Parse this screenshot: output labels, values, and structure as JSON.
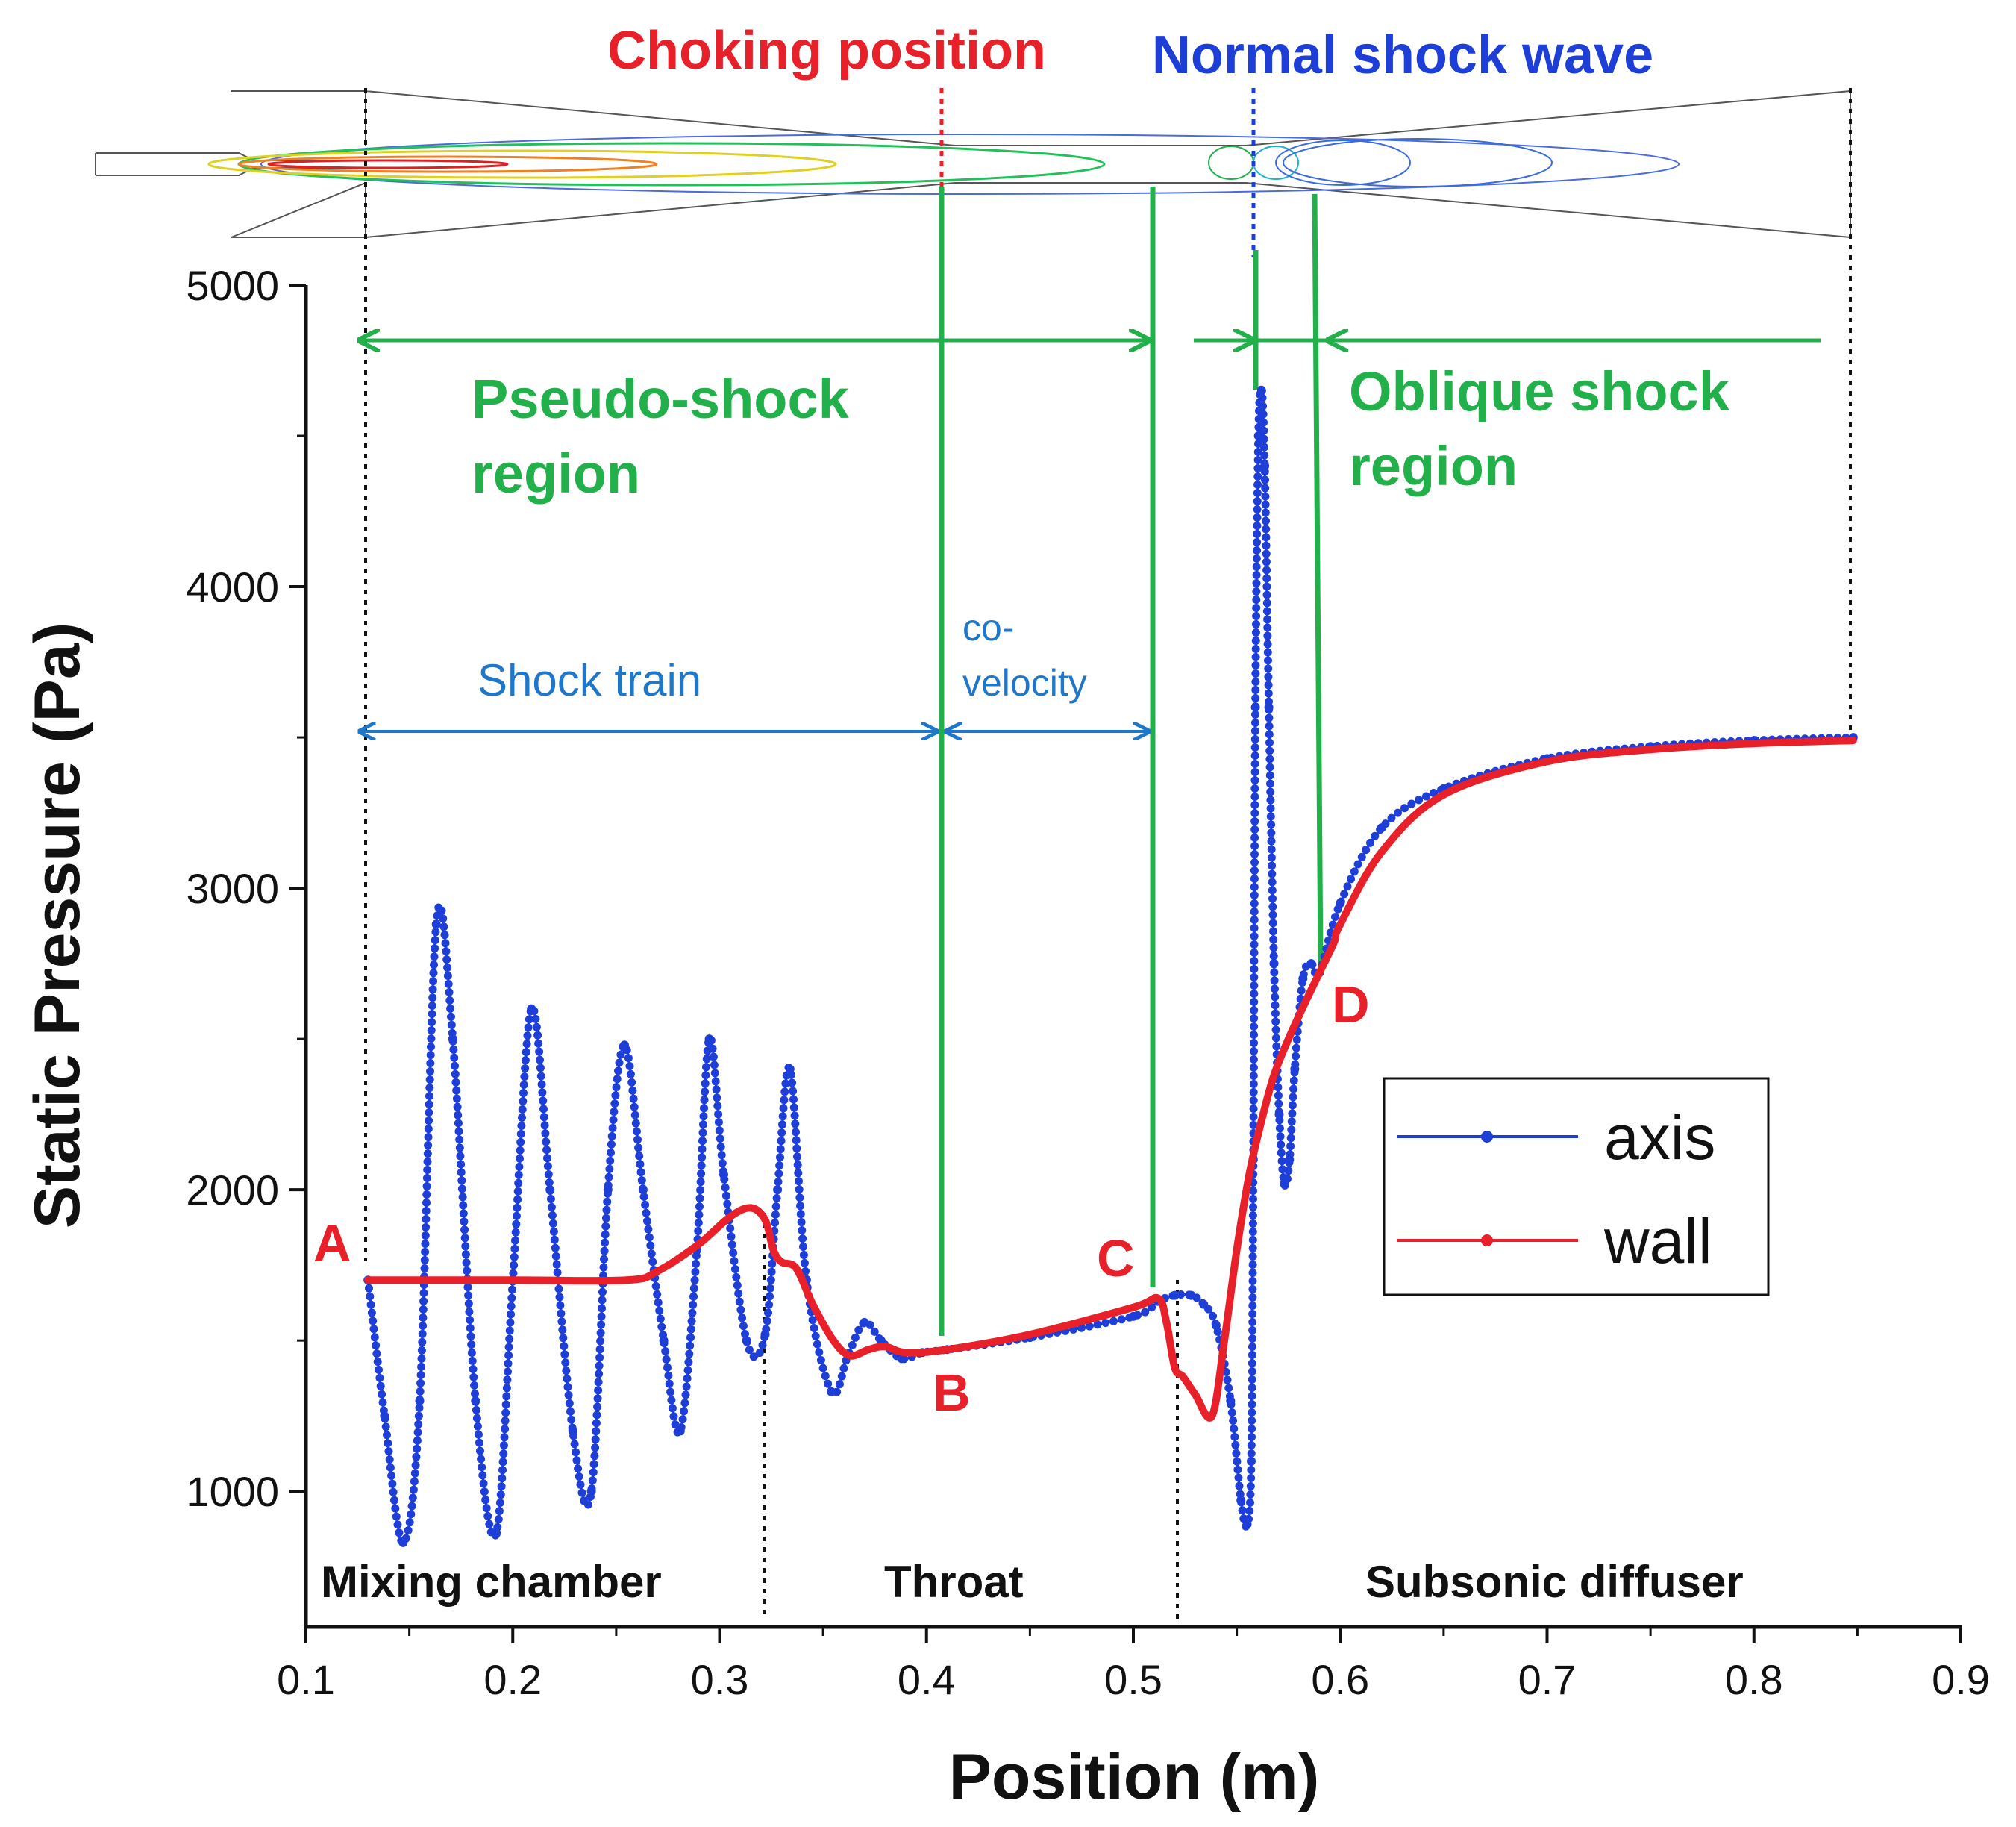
{
  "chart_data": {
    "type": "line",
    "title": "",
    "xlabel": "Position (m)",
    "ylabel": "Static Pressure (Pa)",
    "xlim": [
      0.1,
      0.9
    ],
    "ylim": [
      550,
      5000
    ],
    "xticks": [
      "0.1",
      "0.2",
      "0.3",
      "0.4",
      "0.5",
      "0.6",
      "0.7",
      "0.8",
      "0.9"
    ],
    "yticks": [
      "1000",
      "2000",
      "3000",
      "4000",
      "5000"
    ],
    "xtick_values": [
      0.1,
      0.2,
      0.3,
      0.4,
      0.5,
      0.6,
      0.7,
      0.8,
      0.9
    ],
    "ytick_values": [
      1000,
      2000,
      3000,
      4000,
      5000
    ],
    "legend": [
      "axis",
      "wall"
    ],
    "series": [
      {
        "name": "axis",
        "color": "#1e3ed8",
        "x": [
          0.13,
          0.138,
          0.147,
          0.155,
          0.163,
          0.171,
          0.182,
          0.192,
          0.2,
          0.209,
          0.218,
          0.229,
          0.238,
          0.246,
          0.254,
          0.263,
          0.273,
          0.281,
          0.289,
          0.295,
          0.302,
          0.313,
          0.322,
          0.328,
          0.334,
          0.342,
          0.354,
          0.362,
          0.37,
          0.378,
          0.388,
          0.398,
          0.41,
          0.45,
          0.5,
          0.512,
          0.52,
          0.528,
          0.534,
          0.54,
          0.547,
          0.552,
          0.555,
          0.557,
          0.558,
          0.559,
          0.5605,
          0.562,
          0.5635,
          0.5655,
          0.568,
          0.5705,
          0.573,
          0.5755,
          0.578,
          0.582,
          0.586,
          0.59,
          0.6,
          0.62,
          0.65,
          0.7,
          0.75,
          0.8,
          0.848
        ],
        "values": [
          1700,
          1250,
          830,
          1300,
          2880,
          2500,
          1300,
          860,
          1700,
          2600,
          2000,
          1200,
          1000,
          2000,
          2480,
          2000,
          1500,
          1200,
          1800,
          2500,
          2050,
          1500,
          1520,
          2000,
          2400,
          1700,
          1330,
          1450,
          1560,
          1500,
          1440,
          1460,
          1470,
          1510,
          1580,
          1630,
          1650,
          1650,
          1620,
          1550,
          1300,
          970,
          890,
          1100,
          2100,
          3600,
          4500,
          4650,
          4400,
          3600,
          2750,
          2250,
          2020,
          2100,
          2400,
          2700,
          2750,
          2720,
          2950,
          3200,
          3330,
          3430,
          3470,
          3490,
          3500
        ]
      },
      {
        "name": "wall",
        "color": "#e8202a",
        "x": [
          0.13,
          0.2,
          0.255,
          0.27,
          0.29,
          0.305,
          0.315,
          0.322,
          0.326,
          0.33,
          0.337,
          0.345,
          0.355,
          0.363,
          0.372,
          0.38,
          0.39,
          0.41,
          0.45,
          0.5,
          0.512,
          0.516,
          0.52,
          0.524,
          0.53,
          0.538,
          0.544,
          0.55,
          0.556,
          0.562,
          0.568,
          0.575,
          0.583,
          0.59,
          0.597,
          0.6,
          0.62,
          0.65,
          0.7,
          0.75,
          0.8,
          0.848
        ],
        "values": [
          1700,
          1700,
          1700,
          1730,
          1820,
          1910,
          1940,
          1900,
          1800,
          1760,
          1740,
          1620,
          1500,
          1450,
          1470,
          1480,
          1460,
          1470,
          1520,
          1610,
          1640,
          1560,
          1410,
          1380,
          1320,
          1250,
          1500,
          1800,
          2050,
          2230,
          2380,
          2500,
          2620,
          2720,
          2820,
          2880,
          3120,
          3310,
          3420,
          3460,
          3480,
          3490
        ]
      }
    ],
    "annotations": {
      "choking_position": "Choking position",
      "normal_shock_wave": "Normal shock wave",
      "pseudo_shock_line1": "Pseudo-shock",
      "pseudo_shock_line2": "region",
      "oblique_shock_line1": "Oblique shock",
      "oblique_shock_line2": "region",
      "shock_train": "Shock train",
      "co_velocity_line1": "co-",
      "co_velocity_line2": "velocity",
      "point_a": "A",
      "point_b": "B",
      "point_c": "C",
      "point_d": "D",
      "mixing_chamber": "Mixing chamber",
      "throat": "Throat",
      "subsonic_diffuser": "Subsonic diffuser"
    },
    "colors": {
      "axis_line": "#1e3ed8",
      "wall_line": "#e8202a",
      "region_green": "#22b04b",
      "shock_blue": "#1f77c9"
    }
  }
}
